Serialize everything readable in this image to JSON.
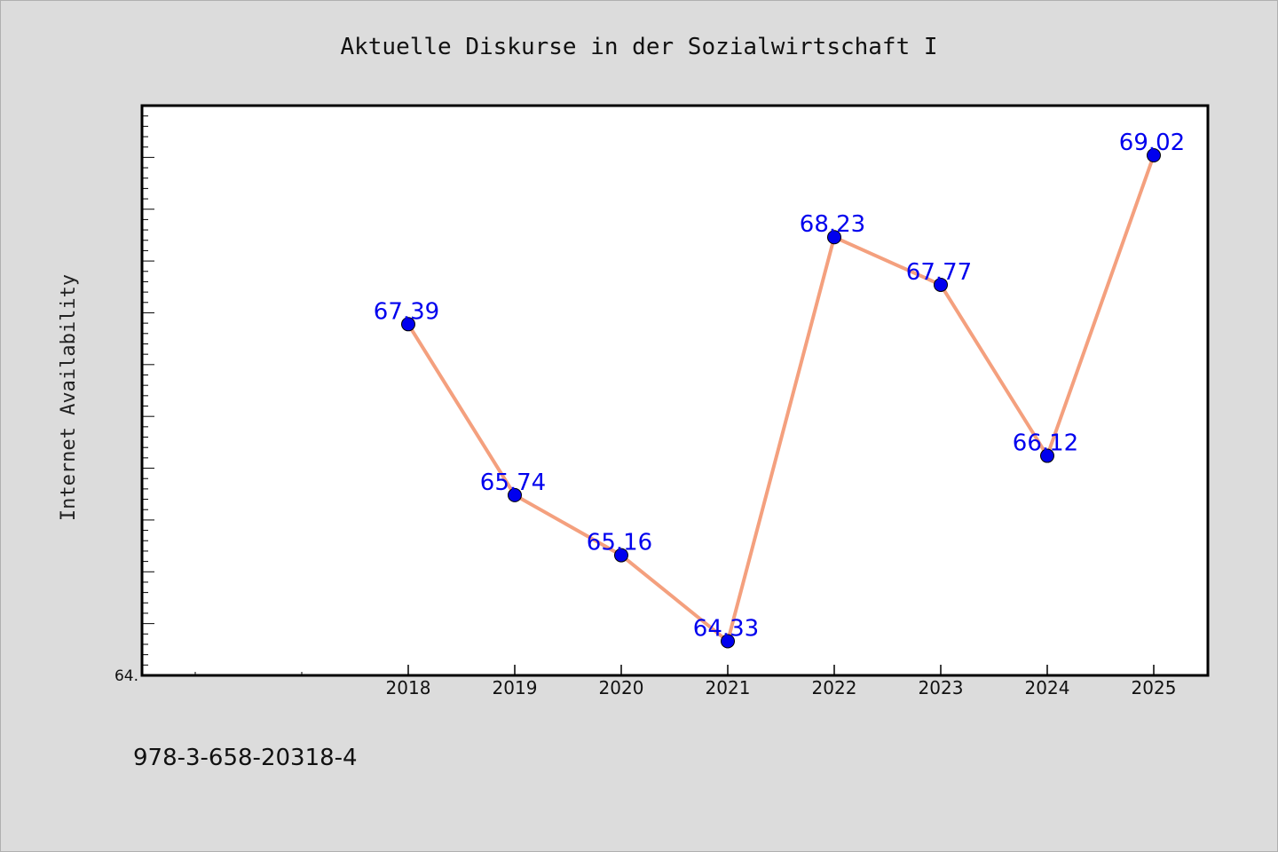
{
  "chart_data": {
    "type": "line",
    "title": "Aktuelle Diskurse in der Sozialwirtschaft I",
    "xlabel": "",
    "ylabel": "Internet Availability",
    "categories": [
      "2018",
      "2019",
      "2020",
      "2021",
      "2022",
      "2023",
      "2024",
      "2025"
    ],
    "series": [
      {
        "values": [
          67.39,
          65.74,
          65.16,
          64.33,
          68.23,
          67.77,
          66.12,
          69.02
        ]
      }
    ],
    "data_labels": [
      "67.39",
      "65.74",
      "65.16",
      "64.33",
      "68.23",
      "67.77",
      "66.12",
      "69.02"
    ],
    "y_tick_labels": [
      "64."
    ],
    "ylim": [
      64.0,
      69.5
    ],
    "grid": false,
    "legend": "none",
    "line_color": "#f4a07e",
    "marker_color": "#0000ee",
    "label_color": "#0000ee"
  },
  "footnote": "978-3-658-20318-4"
}
